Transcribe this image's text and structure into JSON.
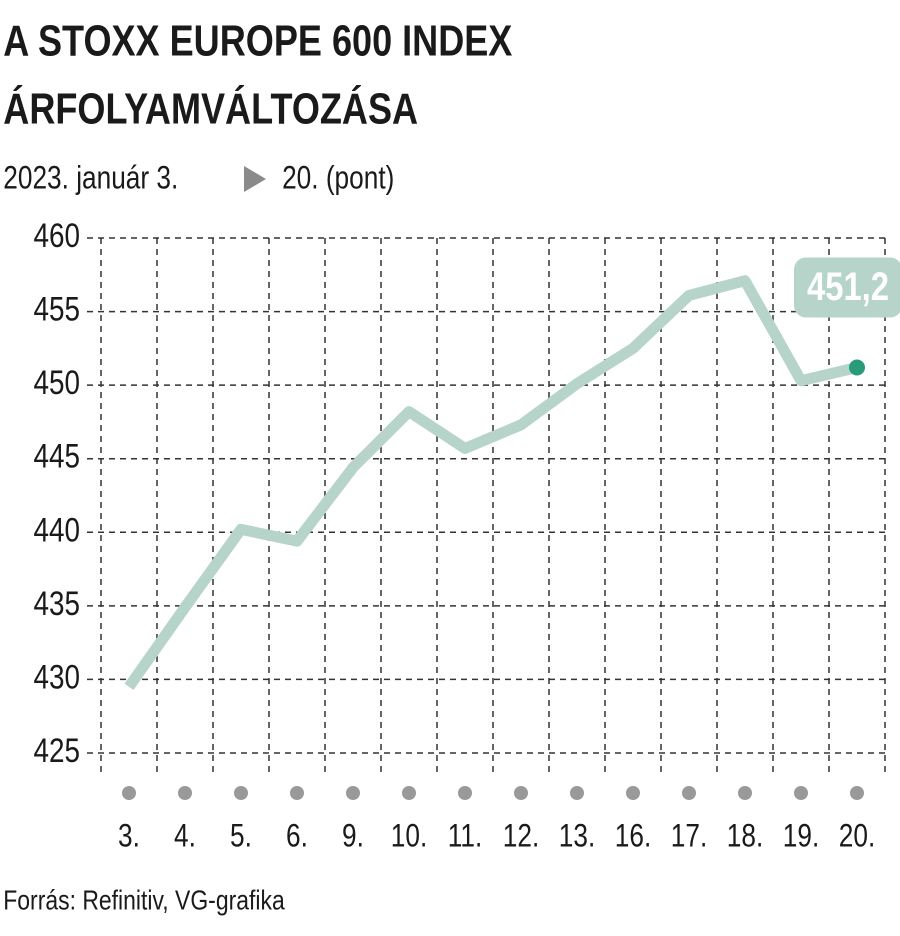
{
  "chart_data": {
    "type": "line",
    "title": [
      "A STOXX EUROPE 600 INDEX",
      "ÁRFOLYAMVÁLTOZÁSA"
    ],
    "subtitle": [
      "2023. január 3.",
      "20. (pont)"
    ],
    "source": "Forrás: Refinitiv, VG-grafika",
    "categories": [
      "3.",
      "4.",
      "5.",
      "6.",
      "9.",
      "10.",
      "11.",
      "12.",
      "13.",
      "16.",
      "17.",
      "18.",
      "19.",
      "20."
    ],
    "series": [
      {
        "color": "#b6d4ca",
        "marker_color": "#2a9b79",
        "values": [
          429.5,
          434.9,
          440.2,
          439.4,
          444.4,
          448.2,
          445.7,
          447.3,
          450.1,
          452.5,
          456.1,
          457.1,
          450.3,
          451.2
        ],
        "value_labels": [
          null,
          null,
          null,
          null,
          null,
          null,
          null,
          null,
          null,
          null,
          null,
          null,
          null,
          "451,2"
        ]
      }
    ],
    "ylim": [
      425,
      460
    ],
    "yticks": [
      425,
      430,
      435,
      440,
      445,
      450,
      455,
      460
    ],
    "grid": true
  }
}
